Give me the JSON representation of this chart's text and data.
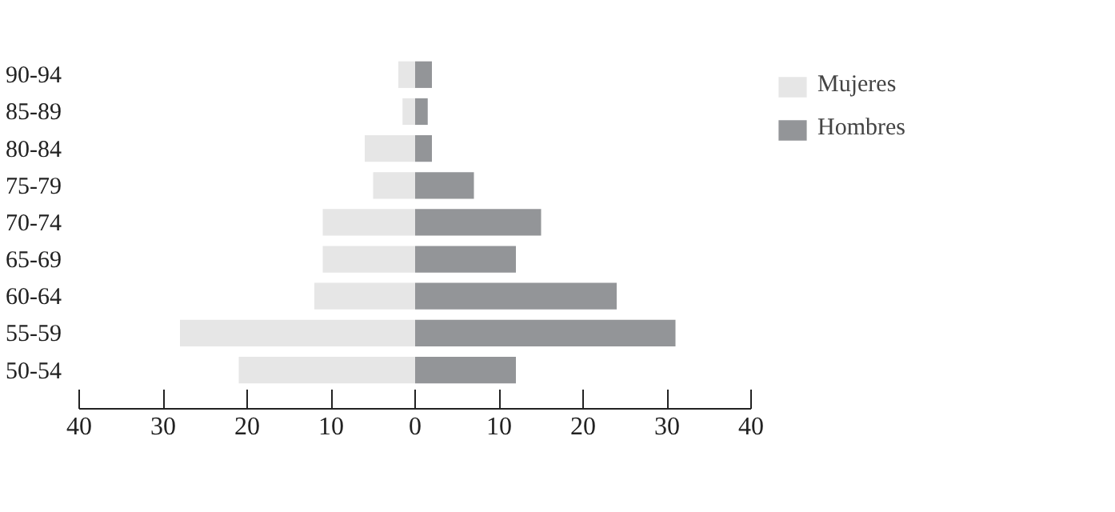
{
  "chart_data": {
    "type": "bar",
    "orientation": "horizontal",
    "stacked": true,
    "categories": [
      "90-94",
      "85-89",
      "80-84",
      "75-79",
      "70-74",
      "65-69",
      "60-64",
      "55-59",
      "50-54"
    ],
    "series": [
      {
        "name": "Mujeres",
        "color": "#e6e6e6",
        "values": [
          -2,
          -1.5,
          -6,
          -5,
          -11,
          -11,
          -12,
          -28,
          -21
        ]
      },
      {
        "name": "Hombres",
        "color": "#939598",
        "values": [
          2,
          1.5,
          2,
          7,
          15,
          12,
          24,
          31,
          12
        ]
      }
    ],
    "xlim": [
      -40,
      40
    ],
    "xticks": [
      {
        "value": -40,
        "label": "40"
      },
      {
        "value": -30,
        "label": "30"
      },
      {
        "value": -20,
        "label": "20"
      },
      {
        "value": -10,
        "label": "10"
      },
      0,
      10,
      20,
      30,
      40
    ],
    "grid": false,
    "legend": "right"
  }
}
